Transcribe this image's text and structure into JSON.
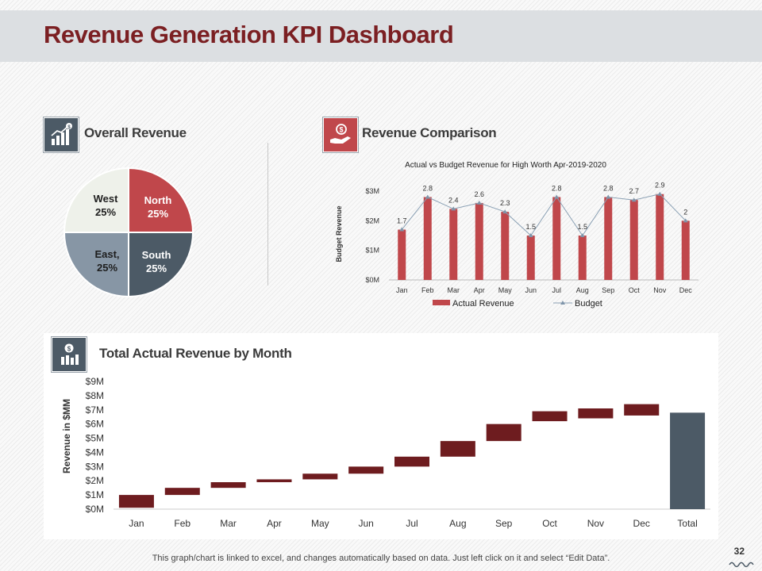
{
  "title": "Revenue Generation KPI Dashboard",
  "colors": {
    "accent": "#c0474b",
    "dark_red": "#6e1c1f",
    "slate": "#4c5a66",
    "grey_blue": "#8796a5",
    "light": "#eef1ea"
  },
  "overall": {
    "heading": "Overall Revenue",
    "slices": [
      {
        "name": "North",
        "value": "25%"
      },
      {
        "name": "South",
        "value": "25%"
      },
      {
        "name": "East,",
        "value": "25%"
      },
      {
        "name": "West",
        "value": "25%"
      }
    ]
  },
  "comparison": {
    "heading": "Revenue Comparison",
    "chart_title": "Actual vs Budget Revenue for High Worth Apr-2019-2020",
    "ylabel": "Budget Revenue"
  },
  "waterfall": {
    "heading": "Total Actual Revenue by Month",
    "ylabel": "Revenue in $MM"
  },
  "footer": "This graph/chart is linked to excel, and changes automatically based on data. Just left click on it and select “Edit Data”.",
  "page_number": "32",
  "chart_data": [
    {
      "type": "pie",
      "title": "Overall Revenue",
      "categories": [
        "North",
        "South",
        "East",
        "West"
      ],
      "values": [
        25,
        25,
        25,
        25
      ]
    },
    {
      "type": "bar",
      "title": "Actual vs Budget Revenue for High Worth Apr-2019-2020",
      "categories": [
        "Jan",
        "Feb",
        "Mar",
        "Apr",
        "May",
        "Jun",
        "Jul",
        "Aug",
        "Sep",
        "Oct",
        "Nov",
        "Dec"
      ],
      "series": [
        {
          "name": "Actual Revenue",
          "kind": "bar",
          "values": [
            1.7,
            2.8,
            2.4,
            2.6,
            2.3,
            1.5,
            2.8,
            1.5,
            2.8,
            2.7,
            2.9,
            2
          ]
        },
        {
          "name": "Budget",
          "kind": "line",
          "values": [
            1.7,
            2.8,
            2.4,
            2.6,
            2.3,
            1.5,
            2.8,
            1.5,
            2.8,
            2.7,
            2.9,
            2
          ]
        }
      ],
      "yticks": [
        "$0M",
        "$1M",
        "$2M",
        "$3M"
      ],
      "ylim": [
        0,
        3
      ],
      "ylabel": "Budget Revenue"
    },
    {
      "type": "waterfall",
      "title": "Total Actual Revenue by Month",
      "categories": [
        "Jan",
        "Feb",
        "Mar",
        "Apr",
        "May",
        "Jun",
        "Jul",
        "Aug",
        "Sep",
        "Oct",
        "Nov",
        "Dec",
        "Total"
      ],
      "ranges": [
        [
          0.1,
          1.0
        ],
        [
          1.0,
          1.5
        ],
        [
          1.5,
          1.9
        ],
        [
          1.9,
          2.1
        ],
        [
          2.1,
          2.5
        ],
        [
          2.5,
          3.0
        ],
        [
          3.0,
          3.7
        ],
        [
          3.7,
          4.8
        ],
        [
          4.8,
          6.0
        ],
        [
          6.2,
          6.9
        ],
        [
          6.4,
          7.1
        ],
        [
          6.6,
          7.4
        ],
        [
          0,
          6.8
        ]
      ],
      "yticks": [
        "$0M",
        "$1M",
        "$2M",
        "$3M",
        "$4M",
        "$5M",
        "$6M",
        "$7M",
        "$8M",
        "$9M"
      ],
      "ylim": [
        0,
        9
      ],
      "ylabel": "Revenue in $MM"
    }
  ]
}
